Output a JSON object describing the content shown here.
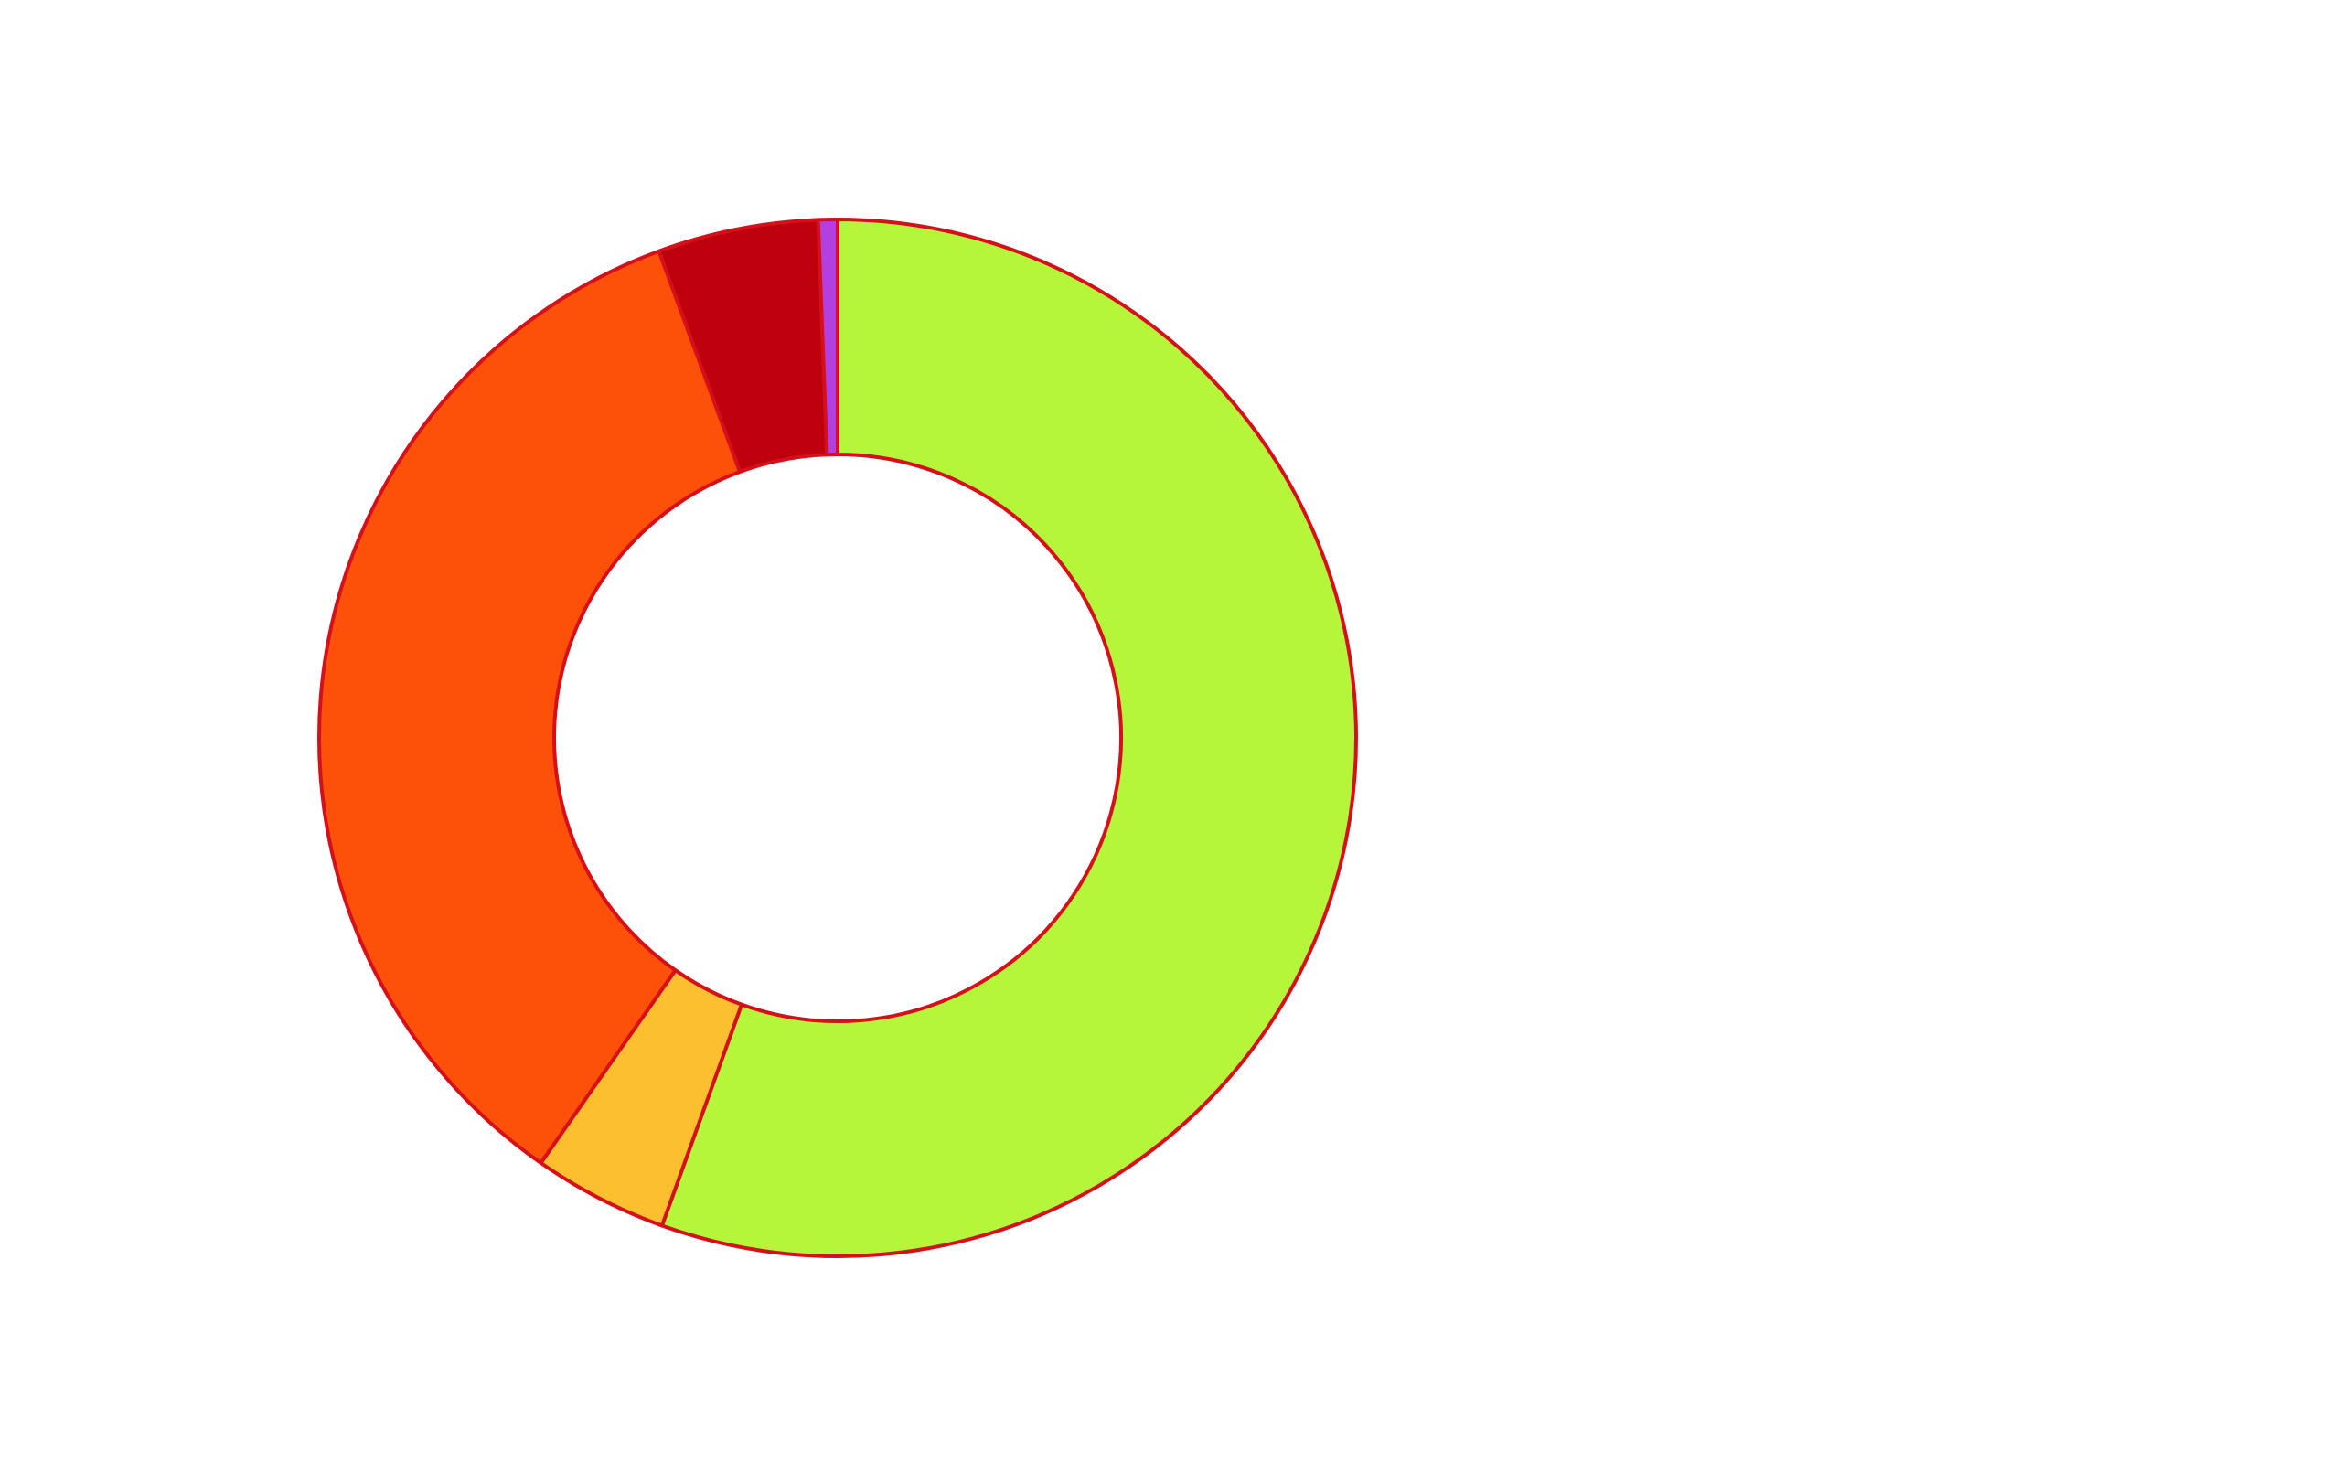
{
  "chart_data": {
    "type": "doughnut",
    "categories": [
      null,
      null,
      null,
      null,
      null
    ],
    "values": [
      55.5,
      4.2,
      34.7,
      5.0,
      0.6
    ],
    "colors": [
      "#b5f53a",
      "#fbbf2f",
      "#fd5008",
      "#be000e",
      "#b23fe0"
    ],
    "stroke": "#d6101a"
  }
}
